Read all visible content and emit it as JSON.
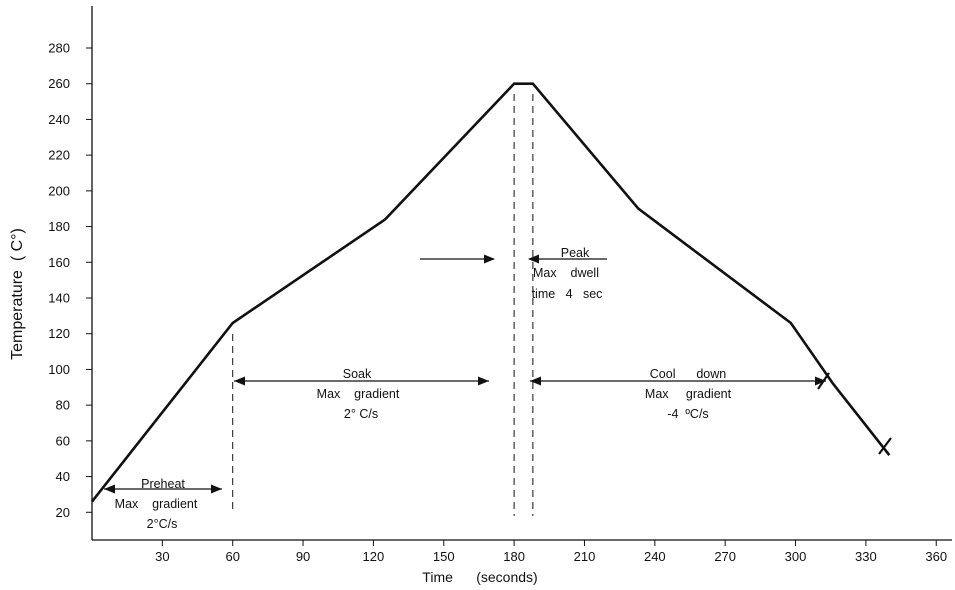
{
  "chart_data": {
    "type": "line",
    "title": "",
    "xlabel": "Time      (seconds)",
    "ylabel": "Temperature  ( C°)",
    "xlim": [
      0,
      368
    ],
    "ylim": [
      0,
      294
    ],
    "x_ticks": [
      30,
      60,
      90,
      120,
      150,
      180,
      210,
      240,
      270,
      300,
      330,
      360
    ],
    "y_ticks": [
      20,
      40,
      60,
      80,
      100,
      120,
      140,
      160,
      180,
      200,
      220,
      240,
      260,
      280
    ],
    "grid": false,
    "legend": "none",
    "series": [
      {
        "x": [
          0,
          60,
          125,
          180,
          188,
          233,
          298,
          316,
          340
        ],
        "y": [
          26,
          126,
          184,
          260,
          260,
          190,
          126,
          92,
          52
        ]
      }
    ],
    "annotations": {
      "preheat": {
        "title": "Preheat",
        "line1": "Max    gradient",
        "line2": "2°C/s"
      },
      "soak": {
        "title": "Soak",
        "line1": "Max    gradient",
        "line2": "2° C/s"
      },
      "peak": {
        "title": "Peak",
        "line1": "Max    dwell",
        "line2": "time   4   sec"
      },
      "cool": {
        "title": "Cool      down",
        "line1": "Max     gradient",
        "line2": "-4  ºC/s"
      }
    },
    "line_color": "#111111"
  }
}
